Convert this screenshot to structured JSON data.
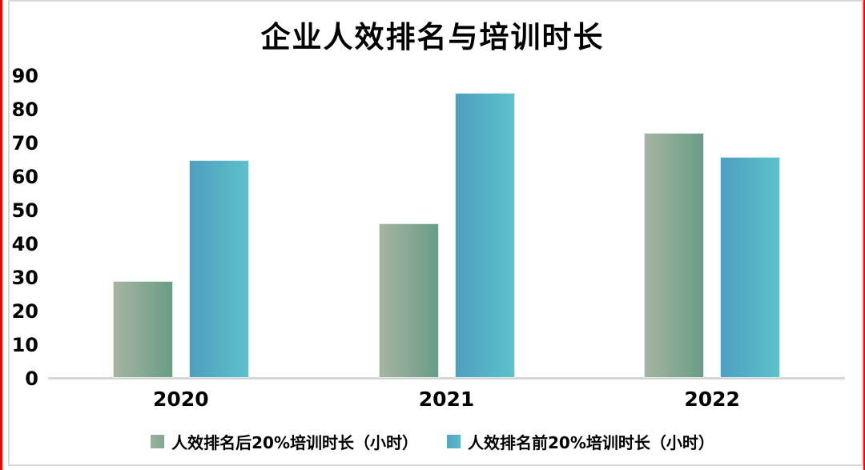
{
  "chart_data": {
    "type": "bar",
    "title": "企业人效排名与培训时长",
    "categories": [
      "2020",
      "2021",
      "2022"
    ],
    "series": [
      {
        "name": "人效排名后20%培训时长（小时）",
        "values": [
          29,
          46,
          73
        ],
        "gradient_start": "#a6b5a2",
        "gradient_end": "#699c86",
        "legend_swatch_start": "#9db2a0",
        "legend_swatch_end": "#85a78f"
      },
      {
        "name": "人效排名前20%培训时长（小时）",
        "values": [
          65,
          85,
          66
        ],
        "gradient_start": "#4f9ec0",
        "gradient_end": "#5cc2ca",
        "legend_swatch_start": "#53a7c3",
        "legend_swatch_end": "#58b8c8"
      }
    ],
    "xlabel": "",
    "ylabel": "",
    "ylim": [
      0,
      90
    ],
    "yticks": [
      0,
      10,
      20,
      30,
      40,
      50,
      60,
      70,
      80,
      90
    ],
    "grid": false,
    "legend_position": "bottom"
  },
  "colors": {
    "axis_line": "#d6d6d6",
    "frame_border": "#d9d9d9",
    "edge_accent": "#fe0000",
    "text": "#000000",
    "background": "#ffffff"
  }
}
